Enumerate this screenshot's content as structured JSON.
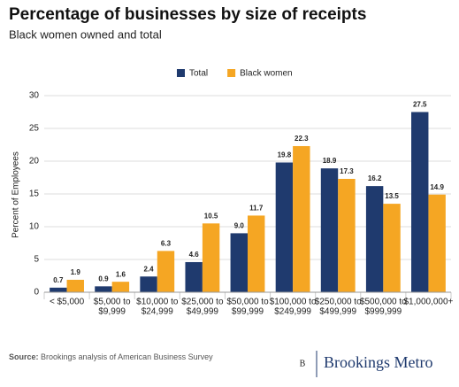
{
  "chart_data": {
    "type": "bar",
    "title": "Percentage of businesses by size of receipts",
    "subtitle": "Black women owned and total",
    "y_label": "Percent of Employees",
    "categories": [
      [
        "< $5,000"
      ],
      [
        "$5,000 to",
        "$9,999"
      ],
      [
        "$10,000 to",
        "$24,999"
      ],
      [
        "$25,000 to",
        "$49,999"
      ],
      [
        "$50,000 to",
        "$99,999"
      ],
      [
        "$100,000 to",
        "$249,999"
      ],
      [
        "$250,000 to",
        "$499,999"
      ],
      [
        "$500,000 to",
        "$999,999"
      ],
      [
        "$1,000,000+"
      ]
    ],
    "series": [
      {
        "name": "Total",
        "color": "#1f3a6e",
        "values": [
          0.7,
          0.9,
          2.4,
          4.6,
          9.0,
          19.8,
          18.9,
          16.2,
          27.5
        ],
        "value_labels": [
          "0.7",
          "0.9",
          "2.4",
          "4.6",
          "9.0",
          "19.8",
          "18.9",
          "16.2",
          "27.5"
        ]
      },
      {
        "name": "Black women",
        "color": "#f5a623",
        "values": [
          1.9,
          1.6,
          6.3,
          10.5,
          11.7,
          22.3,
          17.3,
          13.5,
          14.9
        ],
        "value_labels": [
          "1.9",
          "1.6",
          "6.3",
          "10.5",
          "11.7",
          "22.3",
          "17.3",
          "13.5",
          "14.9"
        ]
      }
    ],
    "ylim": [
      0,
      30
    ],
    "yticks": [
      0,
      5,
      10,
      15,
      20,
      25,
      30
    ],
    "grid": true,
    "source_label": "Source:",
    "source": "Brookings analysis of American Business Survey",
    "brand_mark": "B",
    "brand": "Brookings Metro"
  }
}
